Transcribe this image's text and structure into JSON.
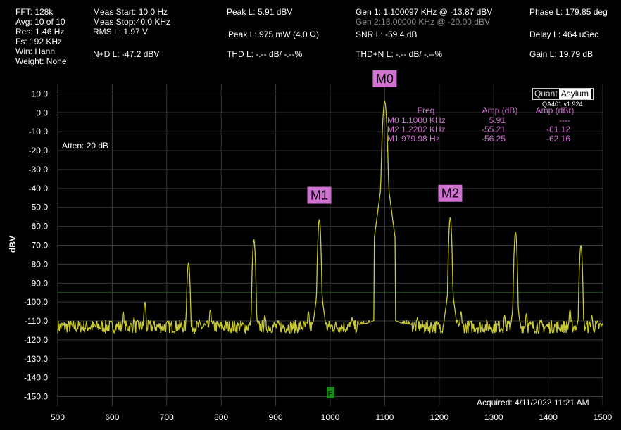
{
  "header": {
    "col1": [
      "FFT: 128k",
      "Avg: 10 of 10",
      "Res: 1.46 Hz",
      "Fs: 192 KHz",
      "Win: Hann",
      "Weight: None"
    ],
    "meas_start": "Meas Start: 10.0 Hz",
    "meas_stop": "Meas Stop:40.0 KHz",
    "rms": "RMS L: 1.97 V",
    "nd": "N+D L: -47.2 dBV",
    "peak_dbv": "Peak L: 5.91 dBV",
    "peak_mw": "Peak L: 975 mW (4.0 Ω)",
    "thd": "THD L: -.-- dB/ -.--%",
    "gen1": "Gen 1: 1.100097 KHz @ -13.87  dBV",
    "gen2": "Gen 2:18.00000 KHz @ -20.00  dBV",
    "snr": "SNR L: -59.4 dB",
    "thdn": "THD+N L: -.-- dB/ -.--%",
    "phase": "Phase L: 179.85 deg",
    "delay": "Delay L: 464 uSec",
    "gain": "Gain L: 19.79 dB"
  },
  "logo": {
    "part1": "Quant",
    "part2": "Asylum",
    "version": "QA401 v1.924"
  },
  "chart_data": {
    "type": "line",
    "xlim": [
      500,
      1500
    ],
    "ylim": [
      -155,
      15
    ],
    "x_ticks": [
      500,
      600,
      700,
      800,
      900,
      1000,
      1100,
      1200,
      1300,
      1400,
      1500
    ],
    "y_ticks": [
      10,
      0,
      -10,
      -20,
      -30,
      -40,
      -50,
      -60,
      -70,
      -80,
      -90,
      -100,
      -110,
      -120,
      -130,
      -140,
      -150
    ],
    "ylabel": "dBV",
    "atten_label": "Atten: 20 dB",
    "acquired": "Acquired: 4/11/2022  11:21 AM",
    "f_marker": "F",
    "f_marker_x": 1000,
    "reference_line_db": -95,
    "noise_floor_db": -113,
    "series": [
      {
        "color": "#c8c832"
      }
    ],
    "peaks": [
      {
        "x": 620,
        "y": -105
      },
      {
        "x": 640,
        "y": -108
      },
      {
        "x": 660,
        "y": -100
      },
      {
        "x": 740,
        "y": -79
      },
      {
        "x": 780,
        "y": -104
      },
      {
        "x": 860,
        "y": -67
      },
      {
        "x": 880,
        "y": -107
      },
      {
        "x": 960,
        "y": -105
      },
      {
        "x": 979.98,
        "y": -56.25
      },
      {
        "x": 1040,
        "y": -108
      },
      {
        "x": 1100,
        "y": 5.91
      },
      {
        "x": 1160,
        "y": -108
      },
      {
        "x": 1220.2,
        "y": -55.21
      },
      {
        "x": 1240,
        "y": -105
      },
      {
        "x": 1320,
        "y": -107
      },
      {
        "x": 1340,
        "y": -63
      },
      {
        "x": 1360,
        "y": -106
      },
      {
        "x": 1440,
        "y": -104
      },
      {
        "x": 1460,
        "y": -70
      },
      {
        "x": 1480,
        "y": -107
      }
    ],
    "markers": [
      {
        "label": "M0",
        "x": 1100,
        "y": 5.91
      },
      {
        "label": "M1",
        "x": 979.98,
        "y": -56.25
      },
      {
        "label": "M2",
        "x": 1220.2,
        "y": -55.21
      }
    ],
    "marker_table": {
      "headers": [
        "Freq",
        "Amp (dB)",
        "Amp (dBr)"
      ],
      "rows": [
        [
          "M0",
          "1.1000 KHz",
          "5.91",
          "----"
        ],
        [
          "M2",
          "1.2202 KHz",
          "-55.21",
          "-61.12"
        ],
        [
          "M1",
          "979.98 Hz",
          "-56.25",
          "-62.16"
        ]
      ]
    },
    "colors": {
      "trace": "#c8c832",
      "marker": "#d070d0",
      "grid": "#3a3a3a",
      "zero_line": "#e0e0e0",
      "ref_line": "#1f5a1f",
      "f_marker": "#1d8a1d"
    }
  }
}
